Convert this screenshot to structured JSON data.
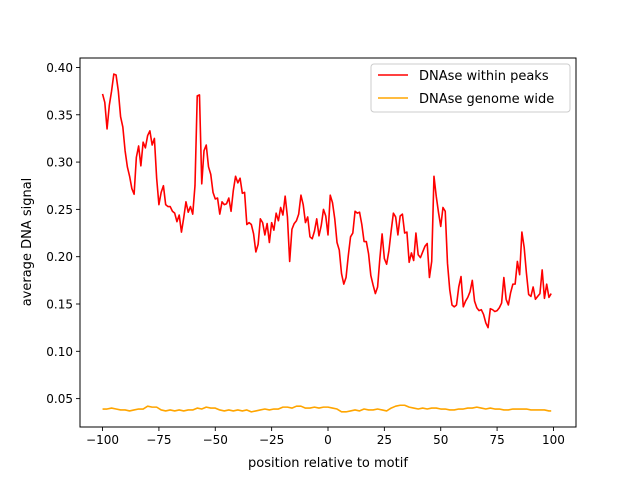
{
  "chart_data": {
    "type": "line",
    "title": "",
    "xlabel": "position relative to motif",
    "ylabel": "average DNA signal",
    "xlim": [
      -110,
      110
    ],
    "ylim": [
      0.02,
      0.41
    ],
    "xticks": [
      -100,
      -75,
      -50,
      -25,
      0,
      25,
      50,
      75,
      100
    ],
    "xtick_labels": [
      "−100",
      "−75",
      "−50",
      "−25",
      "0",
      "25",
      "50",
      "75",
      "100"
    ],
    "yticks": [
      0.05,
      0.1,
      0.15,
      0.2,
      0.25,
      0.3,
      0.35,
      0.4
    ],
    "ytick_labels": [
      "0.05",
      "0.10",
      "0.15",
      "0.20",
      "0.25",
      "0.30",
      "0.35",
      "0.40"
    ],
    "grid": false,
    "legend_position": "top-right",
    "series": [
      {
        "name": "DNAse within peaks",
        "color": "#ff0000",
        "points": [
          [
            -100,
            0.372
          ],
          [
            -99,
            0.363
          ],
          [
            -98,
            0.335
          ],
          [
            -97,
            0.36
          ],
          [
            -96,
            0.375
          ],
          [
            -95,
            0.393
          ],
          [
            -94,
            0.392
          ],
          [
            -93,
            0.375
          ],
          [
            -92,
            0.348
          ],
          [
            -91,
            0.337
          ],
          [
            -90,
            0.312
          ],
          [
            -89,
            0.295
          ],
          [
            -88,
            0.285
          ],
          [
            -87,
            0.272
          ],
          [
            -86,
            0.266
          ],
          [
            -85,
            0.305
          ],
          [
            -84,
            0.317
          ],
          [
            -83,
            0.296
          ],
          [
            -82,
            0.321
          ],
          [
            -81,
            0.315
          ],
          [
            -80,
            0.328
          ],
          [
            -79,
            0.333
          ],
          [
            -78,
            0.318
          ],
          [
            -77,
            0.325
          ],
          [
            -76,
            0.283
          ],
          [
            -75,
            0.255
          ],
          [
            -74,
            0.268
          ],
          [
            -73,
            0.275
          ],
          [
            -72,
            0.255
          ],
          [
            -71,
            0.253
          ],
          [
            -70,
            0.253
          ],
          [
            -69,
            0.248
          ],
          [
            -68,
            0.246
          ],
          [
            -67,
            0.237
          ],
          [
            -66,
            0.244
          ],
          [
            -65,
            0.226
          ],
          [
            -64,
            0.241
          ],
          [
            -63,
            0.258
          ],
          [
            -62,
            0.247
          ],
          [
            -61,
            0.253
          ],
          [
            -60,
            0.245
          ],
          [
            -59,
            0.275
          ],
          [
            -58,
            0.37
          ],
          [
            -57,
            0.371
          ],
          [
            -56,
            0.277
          ],
          [
            -55,
            0.312
          ],
          [
            -54,
            0.318
          ],
          [
            -53,
            0.295
          ],
          [
            -52,
            0.287
          ],
          [
            -51,
            0.268
          ],
          [
            -50,
            0.261
          ],
          [
            -49,
            0.262
          ],
          [
            -48,
            0.245
          ],
          [
            -47,
            0.258
          ],
          [
            -46,
            0.255
          ],
          [
            -45,
            0.256
          ],
          [
            -44,
            0.262
          ],
          [
            -43,
            0.248
          ],
          [
            -42,
            0.27
          ],
          [
            -41,
            0.285
          ],
          [
            -40,
            0.278
          ],
          [
            -39,
            0.283
          ],
          [
            -38,
            0.267
          ],
          [
            -37,
            0.268
          ],
          [
            -36,
            0.234
          ],
          [
            -35,
            0.236
          ],
          [
            -34,
            0.234
          ],
          [
            -33,
            0.224
          ],
          [
            -32,
            0.205
          ],
          [
            -31,
            0.213
          ],
          [
            -30,
            0.24
          ],
          [
            -29,
            0.236
          ],
          [
            -28,
            0.223
          ],
          [
            -27,
            0.235
          ],
          [
            -26,
            0.215
          ],
          [
            -25,
            0.236
          ],
          [
            -24,
            0.228
          ],
          [
            -23,
            0.246
          ],
          [
            -22,
            0.238
          ],
          [
            -21,
            0.252
          ],
          [
            -20,
            0.244
          ],
          [
            -19,
            0.264
          ],
          [
            -18,
            0.242
          ],
          [
            -17,
            0.195
          ],
          [
            -16,
            0.229
          ],
          [
            -15,
            0.235
          ],
          [
            -14,
            0.238
          ],
          [
            -13,
            0.245
          ],
          [
            -12,
            0.265
          ],
          [
            -11,
            0.255
          ],
          [
            -10,
            0.236
          ],
          [
            -9,
            0.242
          ],
          [
            -8,
            0.221
          ],
          [
            -7,
            0.219
          ],
          [
            -6,
            0.227
          ],
          [
            -5,
            0.24
          ],
          [
            -4,
            0.222
          ],
          [
            -3,
            0.233
          ],
          [
            -2,
            0.25
          ],
          [
            -1,
            0.243
          ],
          [
            0,
            0.223
          ],
          [
            1,
            0.265
          ],
          [
            2,
            0.257
          ],
          [
            3,
            0.24
          ],
          [
            4,
            0.215
          ],
          [
            5,
            0.207
          ],
          [
            6,
            0.182
          ],
          [
            7,
            0.171
          ],
          [
            8,
            0.178
          ],
          [
            9,
            0.201
          ],
          [
            10,
            0.221
          ],
          [
            11,
            0.225
          ],
          [
            12,
            0.248
          ],
          [
            13,
            0.246
          ],
          [
            14,
            0.247
          ],
          [
            15,
            0.234
          ],
          [
            16,
            0.216
          ],
          [
            17,
            0.216
          ],
          [
            18,
            0.203
          ],
          [
            19,
            0.18
          ],
          [
            20,
            0.17
          ],
          [
            21,
            0.161
          ],
          [
            22,
            0.168
          ],
          [
            23,
            0.198
          ],
          [
            24,
            0.224
          ],
          [
            25,
            0.198
          ],
          [
            26,
            0.192
          ],
          [
            27,
            0.206
          ],
          [
            28,
            0.227
          ],
          [
            29,
            0.246
          ],
          [
            30,
            0.242
          ],
          [
            31,
            0.223
          ],
          [
            32,
            0.243
          ],
          [
            33,
            0.245
          ],
          [
            34,
            0.225
          ],
          [
            35,
            0.226
          ],
          [
            36,
            0.194
          ],
          [
            37,
            0.204
          ],
          [
            38,
            0.196
          ],
          [
            39,
            0.225
          ],
          [
            40,
            0.202
          ],
          [
            41,
            0.199
          ],
          [
            42,
            0.205
          ],
          [
            43,
            0.211
          ],
          [
            44,
            0.214
          ],
          [
            45,
            0.178
          ],
          [
            46,
            0.195
          ],
          [
            47,
            0.285
          ],
          [
            48,
            0.264
          ],
          [
            49,
            0.247
          ],
          [
            50,
            0.232
          ],
          [
            51,
            0.252
          ],
          [
            52,
            0.248
          ],
          [
            53,
            0.193
          ],
          [
            54,
            0.165
          ],
          [
            55,
            0.149
          ],
          [
            56,
            0.147
          ],
          [
            57,
            0.149
          ],
          [
            58,
            0.168
          ],
          [
            59,
            0.179
          ],
          [
            60,
            0.147
          ],
          [
            61,
            0.153
          ],
          [
            62,
            0.157
          ],
          [
            63,
            0.163
          ],
          [
            64,
            0.175
          ],
          [
            65,
            0.153
          ],
          [
            66,
            0.146
          ],
          [
            67,
            0.143
          ],
          [
            68,
            0.144
          ],
          [
            69,
            0.139
          ],
          [
            70,
            0.13
          ],
          [
            71,
            0.125
          ],
          [
            72,
            0.145
          ],
          [
            73,
            0.144
          ],
          [
            74,
            0.142
          ],
          [
            75,
            0.143
          ],
          [
            76,
            0.146
          ],
          [
            77,
            0.151
          ],
          [
            78,
            0.178
          ],
          [
            79,
            0.155
          ],
          [
            80,
            0.149
          ],
          [
            81,
            0.162
          ],
          [
            82,
            0.171
          ],
          [
            83,
            0.171
          ],
          [
            84,
            0.195
          ],
          [
            85,
            0.181
          ],
          [
            86,
            0.226
          ],
          [
            87,
            0.21
          ],
          [
            88,
            0.183
          ],
          [
            89,
            0.16
          ],
          [
            90,
            0.158
          ],
          [
            91,
            0.168
          ],
          [
            92,
            0.155
          ],
          [
            93,
            0.158
          ],
          [
            94,
            0.161
          ],
          [
            95,
            0.186
          ],
          [
            96,
            0.156
          ],
          [
            97,
            0.171
          ],
          [
            98,
            0.157
          ],
          [
            99,
            0.161
          ]
        ]
      },
      {
        "name": "DNAse genome wide",
        "color": "#ffa500",
        "points": [
          [
            -100,
            0.039
          ],
          [
            -98,
            0.039
          ],
          [
            -96,
            0.04
          ],
          [
            -94,
            0.039
          ],
          [
            -92,
            0.038
          ],
          [
            -90,
            0.038
          ],
          [
            -88,
            0.037
          ],
          [
            -86,
            0.038
          ],
          [
            -84,
            0.039
          ],
          [
            -82,
            0.039
          ],
          [
            -80,
            0.042
          ],
          [
            -78,
            0.041
          ],
          [
            -76,
            0.041
          ],
          [
            -74,
            0.038
          ],
          [
            -72,
            0.037
          ],
          [
            -70,
            0.038
          ],
          [
            -68,
            0.037
          ],
          [
            -66,
            0.038
          ],
          [
            -64,
            0.037
          ],
          [
            -62,
            0.038
          ],
          [
            -60,
            0.038
          ],
          [
            -58,
            0.04
          ],
          [
            -56,
            0.039
          ],
          [
            -54,
            0.041
          ],
          [
            -52,
            0.04
          ],
          [
            -50,
            0.04
          ],
          [
            -48,
            0.038
          ],
          [
            -46,
            0.037
          ],
          [
            -44,
            0.038
          ],
          [
            -42,
            0.037
          ],
          [
            -40,
            0.038
          ],
          [
            -38,
            0.037
          ],
          [
            -36,
            0.038
          ],
          [
            -34,
            0.036
          ],
          [
            -32,
            0.037
          ],
          [
            -30,
            0.038
          ],
          [
            -28,
            0.039
          ],
          [
            -26,
            0.038
          ],
          [
            -24,
            0.039
          ],
          [
            -22,
            0.039
          ],
          [
            -20,
            0.041
          ],
          [
            -18,
            0.041
          ],
          [
            -16,
            0.04
          ],
          [
            -14,
            0.042
          ],
          [
            -12,
            0.042
          ],
          [
            -10,
            0.04
          ],
          [
            -8,
            0.04
          ],
          [
            -6,
            0.041
          ],
          [
            -4,
            0.04
          ],
          [
            -2,
            0.041
          ],
          [
            0,
            0.041
          ],
          [
            2,
            0.04
          ],
          [
            4,
            0.039
          ],
          [
            6,
            0.036
          ],
          [
            8,
            0.036
          ],
          [
            10,
            0.037
          ],
          [
            12,
            0.038
          ],
          [
            14,
            0.037
          ],
          [
            16,
            0.039
          ],
          [
            18,
            0.038
          ],
          [
            20,
            0.038
          ],
          [
            22,
            0.039
          ],
          [
            24,
            0.038
          ],
          [
            26,
            0.037
          ],
          [
            28,
            0.04
          ],
          [
            30,
            0.042
          ],
          [
            32,
            0.043
          ],
          [
            34,
            0.043
          ],
          [
            36,
            0.041
          ],
          [
            38,
            0.04
          ],
          [
            40,
            0.039
          ],
          [
            42,
            0.04
          ],
          [
            44,
            0.039
          ],
          [
            46,
            0.04
          ],
          [
            48,
            0.04
          ],
          [
            50,
            0.039
          ],
          [
            52,
            0.039
          ],
          [
            54,
            0.038
          ],
          [
            56,
            0.038
          ],
          [
            58,
            0.039
          ],
          [
            60,
            0.039
          ],
          [
            62,
            0.04
          ],
          [
            64,
            0.04
          ],
          [
            66,
            0.041
          ],
          [
            68,
            0.04
          ],
          [
            70,
            0.039
          ],
          [
            72,
            0.04
          ],
          [
            74,
            0.039
          ],
          [
            76,
            0.039
          ],
          [
            78,
            0.038
          ],
          [
            80,
            0.038
          ],
          [
            82,
            0.039
          ],
          [
            84,
            0.039
          ],
          [
            86,
            0.039
          ],
          [
            88,
            0.039
          ],
          [
            90,
            0.038
          ],
          [
            92,
            0.038
          ],
          [
            94,
            0.038
          ],
          [
            96,
            0.038
          ],
          [
            98,
            0.037
          ],
          [
            99,
            0.037
          ]
        ]
      }
    ]
  }
}
